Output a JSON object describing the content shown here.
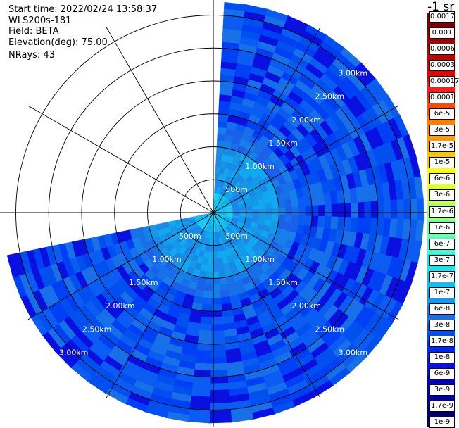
{
  "info": {
    "start_time": "Start time: 2022/02/24 13:58:37",
    "instrument": "WLS200s-181",
    "field": "Field: BETA",
    "elevation": "Elevation(deg): 75.00",
    "nrays": "NRays: 43"
  },
  "colorbar": {
    "title": "-1 sr",
    "colors": [
      "#7f0000",
      "#a00000",
      "#c40000",
      "#e80000",
      "#ff1b1b",
      "#ff4a00",
      "#ff8000",
      "#ff9a00",
      "#ffc400",
      "#ffff00",
      "#d8ff40",
      "#a8ff70",
      "#70ffa8",
      "#40ffd8",
      "#10e8f0",
      "#10c0f0",
      "#1498e8",
      "#1870e8",
      "#0050f0",
      "#0028f0",
      "#0a10e0",
      "#0000c0",
      "#00009a",
      "#000070"
    ],
    "labels": [
      "0.0017",
      "0.001",
      "0.0006",
      "0.0003",
      "0.00017",
      "0.0001",
      "6e-5",
      "3e-5",
      "1.7e-5",
      "1e-5",
      "6e-6",
      "3e-6",
      "1.7e-6",
      "1e-6",
      "6e-7",
      "3e-7",
      "1.7e-7",
      "1e-7",
      "6e-8",
      "3e-8",
      "1.7e-8",
      "1e-8",
      "6e-9",
      "3e-9",
      "1.7e-9",
      "1e-9"
    ]
  },
  "chart_data": {
    "type": "heatmap",
    "projection": "polar-ppi",
    "field": "BETA",
    "units": "-1 sr",
    "range_rings_km": [
      0.5,
      1.0,
      1.5,
      2.0,
      2.5,
      3.0
    ],
    "range_ring_labels": [
      "500m",
      "1.00km",
      "1.50km",
      "2.00km",
      "2.50km",
      "3.00km"
    ],
    "spoke_azimuths_deg": [
      0,
      30,
      60,
      90,
      120,
      150,
      180,
      210,
      240,
      270,
      300,
      330
    ],
    "sector_start_azimuth_deg": 3,
    "sector_end_azimuth_deg": 258,
    "nrays": 43,
    "max_range_km": 3.2,
    "range_gate_km": 0.1,
    "value_bands": [
      {
        "range_km": [
          0.0,
          0.3
        ],
        "typical_value": "1.7e-7"
      },
      {
        "range_km": [
          0.3,
          1.0
        ],
        "typical_value": "6e-8"
      },
      {
        "range_km": [
          1.0,
          1.3
        ],
        "typical_value": "3e-8"
      },
      {
        "range_km": [
          1.3,
          3.2
        ],
        "typical_value": "1e-8"
      }
    ]
  }
}
